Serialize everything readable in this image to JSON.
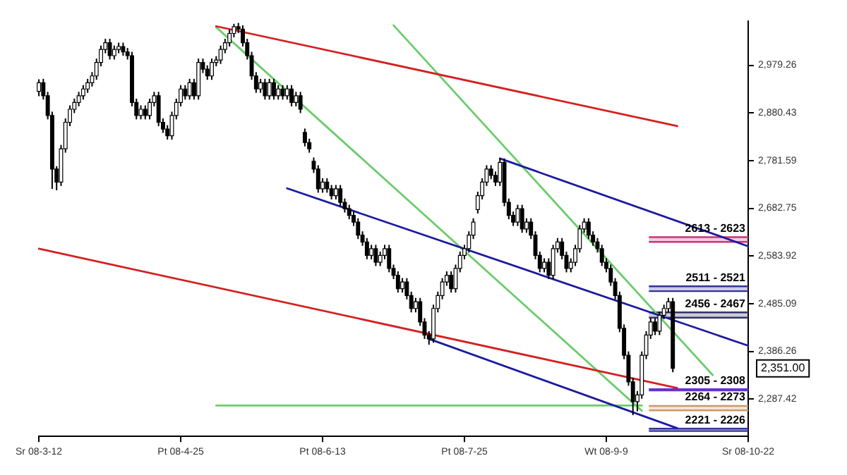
{
  "chart_data": {
    "type": "candlestick",
    "color": "#000000",
    "colors": [
      "#ffffff",
      "#000000",
      "#000000",
      "#000000",
      "#000000",
      "#ffffff",
      "#ffffff",
      "#ffffff",
      "#ffffff",
      "#ffffff",
      "#ffffff",
      "#ffffff",
      "#ffffff",
      "#ffffff",
      "#ffffff",
      "#ffffff",
      "#000000",
      "#ffffff",
      "#ffffff",
      "#000000",
      "#000000",
      "#000000",
      "#000000",
      "#ffffff",
      "#000000",
      "#ffffff",
      "#ffffff",
      "#000000",
      "#000000",
      "#000000",
      "#ffffff",
      "#ffffff",
      "#ffffff",
      "#000000",
      "#ffffff",
      "#000000",
      "#ffffff",
      "#000000",
      "#000000",
      "#ffffff",
      "#ffffff",
      "#ffffff",
      "#ffffff",
      "#ffffff",
      "#ffffff",
      "#000000",
      "#000000",
      "#000000",
      "#000000",
      "#000000",
      "#ffffff",
      "#000000",
      "#ffffff",
      "#000000",
      "#ffffff",
      "#000000",
      "#ffffff",
      "#000000",
      "#ffffff",
      "#000000",
      "#000000",
      "#000000",
      "#000000",
      "#000000",
      "#ffffff",
      "#000000",
      "#000000",
      "#ffffff",
      "#000000",
      "#000000",
      "#000000",
      "#000000",
      "#000000",
      "#000000",
      "#000000",
      "#ffffff",
      "#000000",
      "#ffffff",
      "#ffffff",
      "#000000",
      "#000000",
      "#000000",
      "#ffffff",
      "#000000",
      "#000000",
      "#ffffff",
      "#000000",
      "#000000",
      "#000000",
      "#ffffff",
      "#ffffff",
      "#ffffff",
      "#ffffff",
      "#000000",
      "#ffffff",
      "#ffffff",
      "#ffffff",
      "#ffffff",
      "#ffffff",
      "#ffffff",
      "#ffffff",
      "#ffffff",
      "#000000",
      "#000000",
      "#ffffff",
      "#000000",
      "#000000",
      "#000000",
      "#ffffff",
      "#000000",
      "#ffffff",
      "#000000",
      "#000000",
      "#000000",
      "#ffffff",
      "#000000",
      "#ffffff",
      "#ffffff",
      "#000000",
      "#000000",
      "#ffffff",
      "#ffffff",
      "#ffffff",
      "#ffffff",
      "#000000",
      "#000000",
      "#000000",
      "#000000",
      "#000000",
      "#000000",
      "#000000",
      "#000000",
      "#000000",
      "#000000",
      "#000000",
      "#ffffff",
      "#ffffff",
      "#ffffff",
      "#ffffff",
      "#000000",
      "#ffffff",
      "#ffffff",
      "#ffffff",
      "#000000",
      null,
      null,
      null,
      null,
      null,
      null,
      null,
      null,
      null,
      null,
      null,
      null,
      null,
      null,
      null,
      null,
      null
    ],
    "categories": [
      "Sr 08-3-12",
      null,
      null,
      null,
      null,
      null,
      null,
      null,
      null,
      null,
      null,
      null,
      null,
      null,
      null,
      null,
      null,
      null,
      null,
      null,
      null,
      null,
      null,
      null,
      null,
      null,
      null,
      null,
      null,
      null,
      null,
      null,
      "Pt 08-4-25",
      null,
      null,
      null,
      null,
      null,
      null,
      null,
      null,
      null,
      null,
      null,
      null,
      null,
      null,
      null,
      null,
      null,
      null,
      null,
      null,
      null,
      null,
      null,
      null,
      null,
      null,
      null,
      null,
      null,
      null,
      null,
      "Pt 08-6-13",
      null,
      null,
      null,
      null,
      null,
      null,
      null,
      null,
      null,
      null,
      null,
      null,
      null,
      null,
      null,
      null,
      null,
      null,
      null,
      null,
      null,
      null,
      null,
      null,
      null,
      null,
      null,
      null,
      null,
      null,
      null,
      "Pt 08-7-25",
      null,
      null,
      null,
      null,
      null,
      null,
      null,
      null,
      null,
      null,
      null,
      null,
      null,
      null,
      null,
      null,
      null,
      null,
      null,
      null,
      null,
      null,
      null,
      null,
      null,
      null,
      null,
      null,
      null,
      null,
      null,
      "Wt 08-9-9",
      null,
      null,
      null,
      null,
      null,
      null,
      null,
      null,
      null,
      null,
      null,
      null,
      null,
      null,
      null,
      null,
      null,
      null,
      null,
      null,
      null,
      null,
      null,
      null,
      null,
      null,
      null,
      null,
      null,
      null,
      null,
      "Sr 08-10-22"
    ],
    "ohlc": [
      [
        2925,
        2950,
        2915,
        2943
      ],
      [
        2943,
        2951,
        2908,
        2916
      ],
      [
        2916,
        2924,
        2867,
        2875
      ],
      [
        2875,
        2883,
        2723,
        2764
      ],
      [
        2764,
        2770,
        2720,
        2737
      ],
      [
        2737,
        2814,
        2729,
        2806
      ],
      [
        2806,
        2869,
        2798,
        2861
      ],
      [
        2861,
        2896,
        2853,
        2888
      ],
      [
        2888,
        2910,
        2880,
        2902
      ],
      [
        2902,
        2924,
        2894,
        2916
      ],
      [
        2916,
        2938,
        2908,
        2930
      ],
      [
        2930,
        2951,
        2922,
        2943
      ],
      [
        2943,
        2965,
        2935,
        2957
      ],
      [
        2957,
        2993,
        2949,
        2985
      ],
      [
        2985,
        3020,
        2977,
        3012
      ],
      [
        3012,
        3034,
        3004,
        3026
      ],
      [
        3026,
        3034,
        2991,
        2999
      ],
      [
        2999,
        3020,
        2991,
        3012
      ],
      [
        3012,
        3026,
        3004,
        3018
      ],
      [
        3018,
        3026,
        2999,
        3007
      ],
      [
        3007,
        3015,
        2991,
        2999
      ],
      [
        2999,
        3007,
        2894,
        2902
      ],
      [
        2902,
        2910,
        2867,
        2875
      ],
      [
        2875,
        2896,
        2867,
        2888
      ],
      [
        2888,
        2896,
        2867,
        2875
      ],
      [
        2875,
        2910,
        2867,
        2902
      ],
      [
        2902,
        2924,
        2894,
        2916
      ],
      [
        2916,
        2924,
        2853,
        2861
      ],
      [
        2861,
        2869,
        2839,
        2847
      ],
      [
        2847,
        2855,
        2825,
        2833
      ],
      [
        2833,
        2883,
        2825,
        2875
      ],
      [
        2875,
        2910,
        2867,
        2902
      ],
      [
        2902,
        2938,
        2894,
        2930
      ],
      [
        2930,
        2938,
        2908,
        2916
      ],
      [
        2916,
        2951,
        2908,
        2943
      ],
      [
        2943,
        2951,
        2908,
        2916
      ],
      [
        2916,
        2993,
        2908,
        2985
      ],
      [
        2985,
        2993,
        2963,
        2971
      ],
      [
        2971,
        2979,
        2949,
        2957
      ],
      [
        2957,
        2993,
        2949,
        2985
      ],
      [
        2985,
        2998,
        2977,
        2990
      ],
      [
        2990,
        3020,
        2982,
        3012
      ],
      [
        3012,
        3034,
        3004,
        3026
      ],
      [
        3026,
        3053,
        3018,
        3045
      ],
      [
        3045,
        3065,
        3037,
        3059
      ],
      [
        3059,
        3067,
        3046,
        3054
      ],
      [
        3054,
        3062,
        3018,
        3026
      ],
      [
        3026,
        3034,
        2991,
        2999
      ],
      [
        2999,
        3007,
        2949,
        2957
      ],
      [
        2957,
        2965,
        2922,
        2930
      ],
      [
        2930,
        2951,
        2922,
        2943
      ],
      [
        2943,
        2951,
        2908,
        2916
      ],
      [
        2916,
        2951,
        2908,
        2943
      ],
      [
        2943,
        2951,
        2908,
        2916
      ],
      [
        2916,
        2938,
        2908,
        2930
      ],
      [
        2930,
        2938,
        2908,
        2916
      ],
      [
        2916,
        2938,
        2908,
        2930
      ],
      [
        2930,
        2938,
        2894,
        2902
      ],
      [
        2902,
        2924,
        2894,
        2916
      ],
      [
        2916,
        2924,
        2880,
        2888
      ],
      [
        2840,
        2848,
        2811,
        2819
      ],
      [
        2819,
        2827,
        2798,
        2806
      ],
      [
        2780,
        2788,
        2756,
        2764
      ],
      [
        2764,
        2772,
        2715,
        2723
      ],
      [
        2723,
        2745,
        2715,
        2737
      ],
      [
        2737,
        2745,
        2715,
        2723
      ],
      [
        2723,
        2731,
        2701,
        2709
      ],
      [
        2709,
        2731,
        2701,
        2723
      ],
      [
        2723,
        2731,
        2687,
        2695
      ],
      [
        2695,
        2703,
        2674,
        2682
      ],
      [
        2682,
        2690,
        2660,
        2668
      ],
      [
        2668,
        2676,
        2646,
        2654
      ],
      [
        2654,
        2662,
        2619,
        2627
      ],
      [
        2627,
        2635,
        2605,
        2613
      ],
      [
        2613,
        2621,
        2577,
        2585
      ],
      [
        2585,
        2607,
        2577,
        2599
      ],
      [
        2599,
        2607,
        2563,
        2571
      ],
      [
        2571,
        2593,
        2563,
        2585
      ],
      [
        2585,
        2607,
        2577,
        2599
      ],
      [
        2599,
        2607,
        2550,
        2558
      ],
      [
        2558,
        2566,
        2536,
        2544
      ],
      [
        2544,
        2552,
        2508,
        2516
      ],
      [
        2516,
        2538,
        2508,
        2530
      ],
      [
        2530,
        2538,
        2494,
        2502
      ],
      [
        2502,
        2510,
        2467,
        2475
      ],
      [
        2475,
        2497,
        2467,
        2489
      ],
      [
        2489,
        2497,
        2439,
        2447
      ],
      [
        2447,
        2455,
        2412,
        2420
      ],
      [
        2420,
        2428,
        2400,
        2412
      ],
      [
        2412,
        2483,
        2404,
        2475
      ],
      [
        2475,
        2510,
        2467,
        2502
      ],
      [
        2502,
        2538,
        2494,
        2530
      ],
      [
        2530,
        2552,
        2522,
        2544
      ],
      [
        2544,
        2552,
        2508,
        2516
      ],
      [
        2516,
        2566,
        2508,
        2558
      ],
      [
        2558,
        2593,
        2550,
        2585
      ],
      [
        2585,
        2607,
        2577,
        2599
      ],
      [
        2599,
        2635,
        2591,
        2627
      ],
      [
        2627,
        2662,
        2619,
        2654
      ],
      [
        2680,
        2717,
        2672,
        2709
      ],
      [
        2709,
        2745,
        2701,
        2737
      ],
      [
        2737,
        2772,
        2729,
        2764
      ],
      [
        2764,
        2772,
        2743,
        2751
      ],
      [
        2751,
        2759,
        2729,
        2737
      ],
      [
        2737,
        2786,
        2729,
        2778
      ],
      [
        2778,
        2786,
        2687,
        2695
      ],
      [
        2695,
        2703,
        2660,
        2668
      ],
      [
        2668,
        2676,
        2646,
        2654
      ],
      [
        2654,
        2690,
        2646,
        2682
      ],
      [
        2682,
        2690,
        2632,
        2640
      ],
      [
        2640,
        2662,
        2632,
        2654
      ],
      [
        2654,
        2662,
        2619,
        2627
      ],
      [
        2627,
        2635,
        2577,
        2585
      ],
      [
        2585,
        2593,
        2550,
        2558
      ],
      [
        2558,
        2579,
        2550,
        2571
      ],
      [
        2571,
        2579,
        2536,
        2544
      ],
      [
        2544,
        2607,
        2536,
        2599
      ],
      [
        2599,
        2621,
        2591,
        2613
      ],
      [
        2613,
        2621,
        2577,
        2585
      ],
      [
        2585,
        2593,
        2550,
        2558
      ],
      [
        2558,
        2579,
        2550,
        2571
      ],
      [
        2571,
        2607,
        2563,
        2599
      ],
      [
        2599,
        2648,
        2591,
        2640
      ],
      [
        2640,
        2662,
        2632,
        2654
      ],
      [
        2654,
        2662,
        2619,
        2627
      ],
      [
        2627,
        2635,
        2605,
        2613
      ],
      [
        2613,
        2621,
        2591,
        2599
      ],
      [
        2599,
        2607,
        2563,
        2571
      ],
      [
        2571,
        2579,
        2550,
        2558
      ],
      [
        2558,
        2566,
        2522,
        2530
      ],
      [
        2530,
        2538,
        2494,
        2502
      ],
      [
        2502,
        2510,
        2426,
        2434
      ],
      [
        2434,
        2442,
        2370,
        2378
      ],
      [
        2378,
        2386,
        2315,
        2323
      ],
      [
        2323,
        2331,
        2254,
        2282
      ],
      [
        2282,
        2304,
        2262,
        2296
      ],
      [
        2296,
        2386,
        2288,
        2378
      ],
      [
        2378,
        2428,
        2370,
        2420
      ],
      [
        2420,
        2455,
        2412,
        2447
      ],
      [
        2447,
        2455,
        2420,
        2428
      ],
      [
        2428,
        2469,
        2420,
        2461
      ],
      [
        2461,
        2483,
        2453,
        2475
      ],
      [
        2475,
        2497,
        2467,
        2489
      ],
      [
        2489,
        2497,
        2343,
        2351
      ],
      null,
      null,
      null,
      null,
      null,
      null,
      null,
      null,
      null,
      null,
      null,
      null,
      null,
      null,
      null,
      null,
      null
    ],
    "series": [
      {
        "type": "line",
        "color": "#d42020",
        "values": [
          null,
          null,
          null,
          null,
          null,
          null,
          null,
          null,
          null,
          null,
          null,
          null,
          null,
          null,
          null,
          null,
          null,
          null,
          null,
          null,
          null,
          null,
          null,
          null,
          null,
          null,
          null,
          null,
          null,
          null,
          null,
          null,
          null,
          null,
          null,
          null,
          null,
          null,
          null,
          null,
          3060,
          null,
          null,
          null,
          null,
          null,
          null,
          null,
          null,
          null,
          null,
          null,
          null,
          null,
          null,
          null,
          null,
          null,
          null,
          null,
          null,
          null,
          null,
          null,
          null,
          null,
          null,
          null,
          null,
          null,
          null,
          null,
          null,
          null,
          null,
          null,
          null,
          null,
          null,
          null,
          null,
          null,
          null,
          null,
          null,
          null,
          null,
          null,
          null,
          null,
          null,
          null,
          null,
          null,
          null,
          null,
          null,
          null,
          null,
          null,
          null,
          null,
          null,
          null,
          null,
          null,
          null,
          null,
          null,
          null,
          null,
          null,
          null,
          null,
          null,
          null,
          null,
          null,
          null,
          null,
          null,
          null,
          null,
          null,
          null,
          null,
          null,
          null,
          null,
          null,
          null,
          null,
          null,
          null,
          null,
          null,
          null,
          null,
          null,
          null,
          null,
          null,
          null,
          null,
          2853,
          null,
          null,
          null,
          null,
          null,
          null,
          null,
          null,
          null,
          null,
          null,
          null,
          null,
          null,
          null,
          null
        ]
      },
      {
        "type": "line",
        "color": "#d42020",
        "values": [
          2599,
          null,
          null,
          null,
          null,
          null,
          null,
          null,
          null,
          null,
          null,
          null,
          null,
          null,
          null,
          null,
          null,
          null,
          null,
          null,
          null,
          null,
          null,
          null,
          null,
          null,
          null,
          null,
          null,
          null,
          null,
          null,
          null,
          null,
          null,
          null,
          null,
          null,
          null,
          null,
          null,
          null,
          null,
          null,
          null,
          null,
          null,
          null,
          null,
          null,
          null,
          null,
          null,
          null,
          null,
          null,
          null,
          null,
          null,
          null,
          null,
          null,
          null,
          null,
          null,
          null,
          null,
          null,
          null,
          null,
          null,
          null,
          null,
          null,
          null,
          null,
          null,
          null,
          null,
          null,
          null,
          null,
          null,
          null,
          null,
          null,
          null,
          null,
          null,
          null,
          null,
          null,
          null,
          null,
          null,
          null,
          null,
          null,
          null,
          null,
          null,
          null,
          null,
          null,
          null,
          null,
          null,
          null,
          null,
          null,
          null,
          null,
          null,
          null,
          null,
          null,
          null,
          null,
          null,
          null,
          null,
          null,
          null,
          null,
          null,
          null,
          null,
          null,
          null,
          null,
          null,
          null,
          null,
          null,
          null,
          null,
          null,
          null,
          null,
          null,
          null,
          null,
          null,
          null,
          2310,
          null,
          null,
          null,
          null,
          null,
          null,
          null,
          null,
          null,
          null,
          null,
          null,
          null,
          null,
          null,
          null
        ]
      },
      {
        "type": "line",
        "color": "#1a1aa0",
        "values": [
          null,
          null,
          null,
          null,
          null,
          null,
          null,
          null,
          null,
          null,
          null,
          null,
          null,
          null,
          null,
          null,
          null,
          null,
          null,
          null,
          null,
          null,
          null,
          null,
          null,
          null,
          null,
          null,
          null,
          null,
          null,
          null,
          null,
          null,
          null,
          null,
          null,
          null,
          null,
          null,
          null,
          null,
          null,
          null,
          null,
          null,
          null,
          null,
          null,
          null,
          null,
          null,
          null,
          null,
          null,
          null,
          null,
          null,
          null,
          null,
          null,
          null,
          null,
          null,
          null,
          null,
          null,
          null,
          null,
          null,
          null,
          null,
          null,
          null,
          null,
          null,
          null,
          null,
          null,
          null,
          null,
          null,
          null,
          null,
          null,
          null,
          null,
          null,
          null,
          null,
          null,
          null,
          null,
          null,
          null,
          null,
          null,
          null,
          null,
          null,
          null,
          null,
          null,
          null,
          2786,
          null,
          null,
          null,
          null,
          null,
          null,
          null,
          null,
          null,
          null,
          null,
          null,
          null,
          null,
          null,
          null,
          null,
          null,
          null,
          null,
          null,
          null,
          null,
          null,
          null,
          null,
          null,
          null,
          null,
          null,
          null,
          null,
          null,
          null,
          null,
          null,
          null,
          null,
          null,
          null,
          null,
          null,
          null,
          null,
          null,
          null,
          null,
          null,
          null,
          null,
          null,
          null,
          null,
          null,
          null,
          2604
        ]
      },
      {
        "type": "line",
        "color": "#1a1aa0",
        "values": [
          null,
          null,
          null,
          null,
          null,
          null,
          null,
          null,
          null,
          null,
          null,
          null,
          null,
          null,
          null,
          null,
          null,
          null,
          null,
          null,
          null,
          null,
          null,
          null,
          null,
          null,
          null,
          null,
          null,
          null,
          null,
          null,
          null,
          null,
          null,
          null,
          null,
          null,
          null,
          null,
          null,
          null,
          null,
          null,
          null,
          null,
          null,
          null,
          null,
          null,
          null,
          null,
          null,
          null,
          null,
          null,
          2724,
          null,
          null,
          null,
          null,
          null,
          null,
          null,
          null,
          null,
          null,
          null,
          null,
          null,
          null,
          null,
          null,
          null,
          null,
          null,
          null,
          null,
          null,
          null,
          null,
          null,
          null,
          null,
          null,
          null,
          null,
          null,
          null,
          null,
          null,
          null,
          null,
          null,
          null,
          null,
          null,
          null,
          null,
          null,
          null,
          null,
          null,
          null,
          null,
          null,
          null,
          null,
          null,
          null,
          null,
          null,
          null,
          null,
          null,
          null,
          null,
          null,
          null,
          null,
          null,
          null,
          null,
          null,
          null,
          null,
          null,
          null,
          null,
          null,
          null,
          null,
          null,
          null,
          null,
          null,
          null,
          null,
          null,
          null,
          null,
          null,
          null,
          null,
          null,
          null,
          null,
          null,
          null,
          null,
          null,
          null,
          null,
          null,
          null,
          null,
          null,
          null,
          null,
          null,
          2398
        ]
      },
      {
        "type": "line",
        "color": "#1a1aa0",
        "values": [
          null,
          null,
          null,
          null,
          null,
          null,
          null,
          null,
          null,
          null,
          null,
          null,
          null,
          null,
          null,
          null,
          null,
          null,
          null,
          null,
          null,
          null,
          null,
          null,
          null,
          null,
          null,
          null,
          null,
          null,
          null,
          null,
          null,
          null,
          null,
          null,
          null,
          null,
          null,
          null,
          null,
          null,
          null,
          null,
          null,
          null,
          null,
          null,
          null,
          null,
          null,
          null,
          null,
          null,
          null,
          null,
          null,
          null,
          null,
          null,
          null,
          null,
          null,
          null,
          null,
          null,
          null,
          null,
          null,
          null,
          null,
          null,
          null,
          null,
          null,
          null,
          null,
          null,
          null,
          null,
          null,
          null,
          null,
          null,
          null,
          null,
          null,
          null,
          2412,
          null,
          null,
          null,
          null,
          null,
          null,
          null,
          null,
          null,
          null,
          null,
          null,
          null,
          null,
          null,
          null,
          null,
          null,
          null,
          null,
          null,
          null,
          null,
          null,
          null,
          null,
          null,
          null,
          null,
          null,
          null,
          null,
          null,
          null,
          null,
          null,
          null,
          null,
          null,
          null,
          null,
          null,
          null,
          null,
          null,
          null,
          null,
          null,
          null,
          null,
          null,
          null,
          null,
          null,
          null,
          2227,
          null,
          null,
          null,
          null,
          null,
          null,
          null,
          null,
          null,
          null,
          null,
          null,
          null,
          null,
          null,
          null
        ]
      },
      {
        "type": "line",
        "color": "#6ccc6c",
        "values": [
          null,
          null,
          null,
          null,
          null,
          null,
          null,
          null,
          null,
          null,
          null,
          null,
          null,
          null,
          null,
          null,
          null,
          null,
          null,
          null,
          null,
          null,
          null,
          null,
          null,
          null,
          null,
          null,
          null,
          null,
          null,
          null,
          null,
          null,
          null,
          null,
          null,
          null,
          null,
          null,
          3058,
          null,
          null,
          null,
          null,
          null,
          null,
          null,
          null,
          null,
          null,
          null,
          null,
          null,
          null,
          null,
          null,
          null,
          null,
          null,
          null,
          null,
          null,
          null,
          null,
          null,
          null,
          null,
          null,
          null,
          null,
          null,
          null,
          null,
          null,
          null,
          null,
          null,
          null,
          null,
          null,
          null,
          null,
          null,
          null,
          null,
          null,
          null,
          null,
          null,
          null,
          null,
          null,
          null,
          null,
          null,
          null,
          null,
          null,
          null,
          null,
          null,
          null,
          null,
          null,
          null,
          null,
          null,
          null,
          null,
          null,
          null,
          null,
          null,
          null,
          null,
          null,
          null,
          null,
          null,
          null,
          null,
          null,
          null,
          null,
          null,
          null,
          null,
          null,
          null,
          null,
          null,
          null,
          null,
          null,
          null,
          2263,
          null,
          null,
          null,
          null,
          null,
          null,
          null,
          null,
          null,
          null,
          null,
          null,
          null,
          null,
          null,
          null,
          null,
          null,
          null,
          null,
          null,
          null,
          null,
          null
        ]
      },
      {
        "type": "line",
        "color": "#6ccc6c",
        "values": [
          null,
          null,
          null,
          null,
          null,
          null,
          null,
          null,
          null,
          null,
          null,
          null,
          null,
          null,
          null,
          null,
          null,
          null,
          null,
          null,
          null,
          null,
          null,
          null,
          null,
          null,
          null,
          null,
          null,
          null,
          null,
          null,
          null,
          null,
          null,
          null,
          null,
          null,
          null,
          null,
          null,
          null,
          null,
          null,
          null,
          null,
          null,
          null,
          null,
          null,
          null,
          null,
          null,
          null,
          null,
          null,
          null,
          null,
          null,
          null,
          null,
          null,
          null,
          null,
          null,
          null,
          null,
          null,
          null,
          null,
          null,
          null,
          null,
          null,
          null,
          null,
          null,
          null,
          null,
          null,
          3062,
          null,
          null,
          null,
          null,
          null,
          null,
          null,
          null,
          null,
          null,
          null,
          null,
          null,
          null,
          null,
          null,
          null,
          null,
          null,
          null,
          null,
          null,
          null,
          null,
          null,
          null,
          null,
          null,
          null,
          null,
          null,
          null,
          null,
          null,
          null,
          null,
          null,
          null,
          null,
          null,
          null,
          null,
          null,
          null,
          null,
          null,
          null,
          null,
          null,
          null,
          null,
          null,
          null,
          null,
          null,
          null,
          null,
          null,
          null,
          null,
          null,
          null,
          null,
          null,
          null,
          null,
          null,
          null,
          null,
          null,
          null,
          2337,
          null,
          null,
          null,
          null,
          null,
          null,
          null,
          null
        ]
      },
      {
        "type": "line",
        "color": "#6ccc6c",
        "values": [
          null,
          null,
          null,
          null,
          null,
          null,
          null,
          null,
          null,
          null,
          null,
          null,
          null,
          null,
          null,
          null,
          null,
          null,
          null,
          null,
          null,
          null,
          null,
          null,
          null,
          null,
          null,
          null,
          null,
          null,
          null,
          null,
          null,
          null,
          null,
          null,
          null,
          null,
          null,
          null,
          2274,
          null,
          null,
          null,
          null,
          null,
          null,
          null,
          null,
          null,
          null,
          null,
          null,
          null,
          null,
          null,
          null,
          null,
          null,
          null,
          null,
          null,
          null,
          null,
          null,
          null,
          null,
          null,
          null,
          null,
          null,
          null,
          null,
          null,
          null,
          null,
          null,
          null,
          null,
          null,
          null,
          null,
          null,
          null,
          null,
          null,
          null,
          null,
          null,
          null,
          null,
          null,
          null,
          null,
          null,
          null,
          null,
          null,
          null,
          null,
          null,
          null,
          null,
          null,
          null,
          null,
          null,
          null,
          null,
          null,
          null,
          null,
          null,
          null,
          null,
          null,
          null,
          null,
          null,
          null,
          null,
          null,
          null,
          null,
          null,
          null,
          null,
          null,
          null,
          null,
          null,
          null,
          null,
          null,
          null,
          null,
          2274,
          null,
          null,
          null,
          null,
          null,
          null,
          null,
          null,
          null,
          null,
          null,
          null,
          null,
          null,
          null,
          null,
          null,
          null,
          null,
          null,
          null,
          null,
          null,
          null
        ]
      }
    ],
    "bands": [
      {
        "axis": "y",
        "from": 2613,
        "to": 2623,
        "label": "2613 - 2623",
        "color": "#cc3377"
      },
      {
        "axis": "y",
        "from": 2511,
        "to": 2521,
        "label": "2511 - 2521",
        "color": "#333399"
      },
      {
        "axis": "y",
        "from": 2456,
        "to": 2467,
        "label": "2456 - 2467",
        "color": "#333366"
      },
      {
        "axis": "y",
        "from": 2305,
        "to": 2308,
        "label": "2305 - 2308",
        "color": "#6633cc"
      },
      {
        "axis": "y",
        "from": 2264,
        "to": 2273,
        "label": "2264 - 2273",
        "color": "#cc9966"
      },
      {
        "axis": "y",
        "from": 2221,
        "to": 2226,
        "label": "2221 - 2226",
        "color": "#333399"
      }
    ],
    "annotations": [
      "2,351.00"
    ],
    "ylim": [
      2210,
      3070
    ],
    "yticks": [
      {
        "value": 2287.42,
        "label": "2,287.42"
      },
      {
        "value": 2386.26,
        "label": "2,386.26"
      },
      {
        "value": 2485.09,
        "label": "2,485.09"
      },
      {
        "value": 2583.92,
        "label": "2,583.92"
      },
      {
        "value": 2682.75,
        "label": "2,682.75"
      },
      {
        "value": 2781.59,
        "label": "2,781.59"
      },
      {
        "value": 2880.43,
        "label": "2,880.43"
      },
      {
        "value": 2979.26,
        "label": "2,979.26"
      }
    ]
  }
}
